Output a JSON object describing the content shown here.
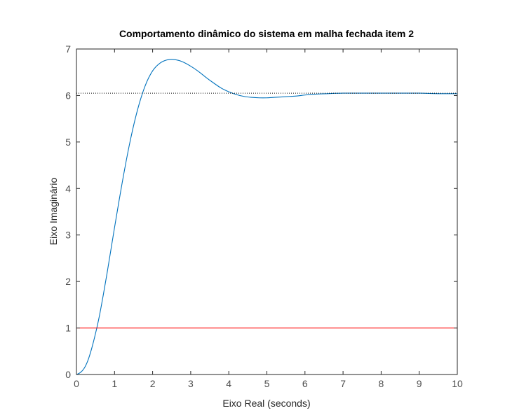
{
  "chart_data": {
    "type": "line",
    "title": "Comportamento dinâmico do sistema em malha fechada item 2",
    "xlabel": "Eixo Real (seconds)",
    "ylabel": "Eixo Imaginário",
    "xlim": [
      0,
      10
    ],
    "ylim": [
      0,
      7
    ],
    "xticks": [
      "0",
      "1",
      "2",
      "3",
      "4",
      "5",
      "6",
      "7",
      "8",
      "9",
      "10"
    ],
    "yticks": [
      "0",
      "1",
      "2",
      "3",
      "4",
      "5",
      "6",
      "7"
    ],
    "grid": false,
    "series": [
      {
        "color": "#0072bd",
        "x": [
          0,
          0.1,
          0.2,
          0.3,
          0.4,
          0.5,
          0.6,
          0.7,
          0.8,
          0.9,
          1.0,
          1.2,
          1.4,
          1.6,
          1.8,
          2.0,
          2.2,
          2.4,
          2.6,
          2.8,
          3.0,
          3.2,
          3.4,
          3.6,
          3.8,
          4.0,
          4.2,
          4.4,
          4.6,
          4.8,
          5.0,
          5.2,
          5.4,
          5.6,
          5.8,
          6.0,
          6.3,
          6.6,
          7.0,
          7.5,
          8.0,
          8.5,
          9.0,
          9.5,
          10.0
        ],
        "y": [
          0,
          0.04,
          0.13,
          0.3,
          0.56,
          0.88,
          1.25,
          1.69,
          2.16,
          2.66,
          3.16,
          4.12,
          4.98,
          5.68,
          6.2,
          6.53,
          6.7,
          6.77,
          6.77,
          6.72,
          6.63,
          6.52,
          6.39,
          6.27,
          6.16,
          6.08,
          6.02,
          5.98,
          5.96,
          5.95,
          5.95,
          5.96,
          5.97,
          5.98,
          5.99,
          6.01,
          6.03,
          6.04,
          6.05,
          6.05,
          6.05,
          6.05,
          6.05,
          6.04,
          6.04
        ]
      },
      {
        "color": "#ff0000",
        "x": [
          0,
          10
        ],
        "y": [
          1,
          1
        ]
      },
      {
        "color": "#000000",
        "style": "dotted",
        "x": [
          0,
          10
        ],
        "y": [
          6.05,
          6.05
        ]
      }
    ]
  }
}
